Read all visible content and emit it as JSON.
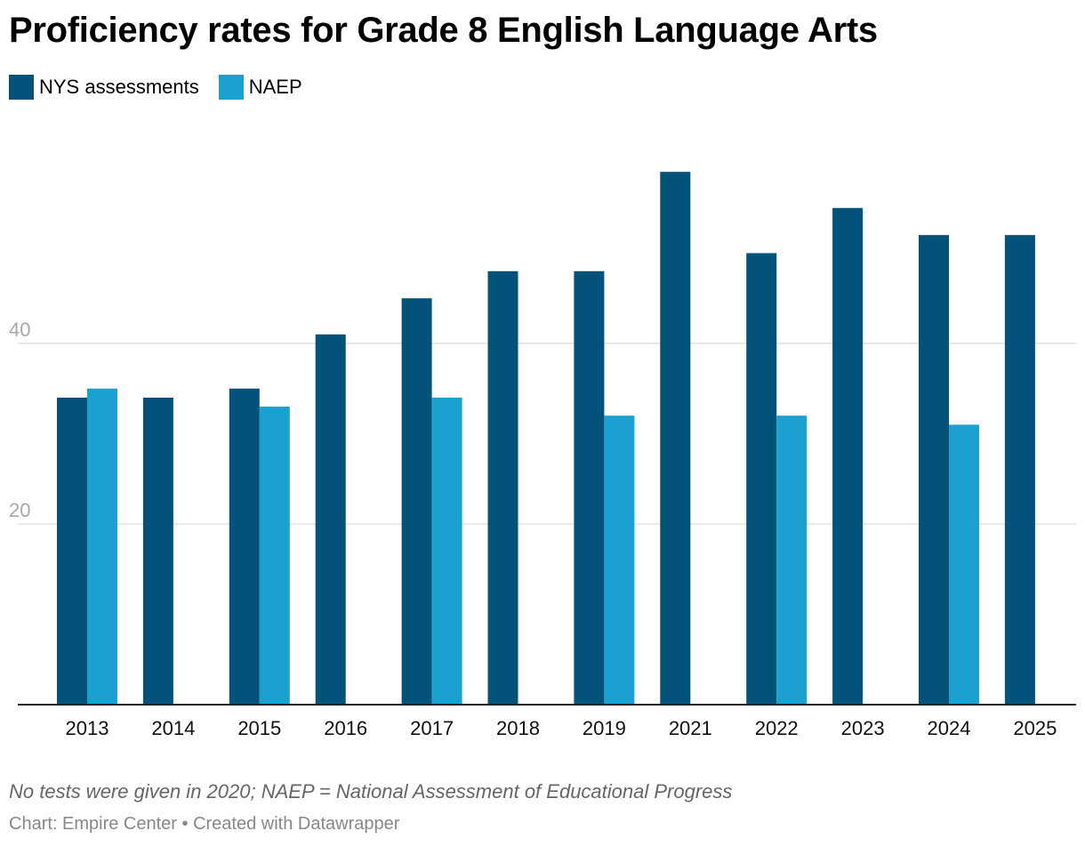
{
  "chart_data": {
    "type": "bar",
    "title": "Proficiency rates for Grade 8 English Language Arts",
    "xlabel": "",
    "ylabel": "",
    "ylim": [
      0,
      60
    ],
    "yticks": [
      20,
      40
    ],
    "grid": true,
    "legend_position": "top-left",
    "categories": [
      "2013",
      "2014",
      "2015",
      "2016",
      "2017",
      "2018",
      "2019",
      "2021",
      "2022",
      "2023",
      "2024",
      "2025"
    ],
    "series": [
      {
        "name": "NYS assessments",
        "color": "#03527a",
        "values": [
          34,
          34,
          35,
          41,
          45,
          48,
          48,
          59,
          50,
          55,
          52,
          52
        ]
      },
      {
        "name": "NAEP",
        "color": "#1ba1d0",
        "values": [
          35,
          null,
          33,
          null,
          34,
          null,
          32,
          null,
          32,
          null,
          31,
          null
        ]
      }
    ]
  },
  "footer": {
    "note": "No tests were given in 2020; NAEP = National Assessment of Educational Progress",
    "credit": "Chart: Empire Center • Created with Datawrapper"
  }
}
